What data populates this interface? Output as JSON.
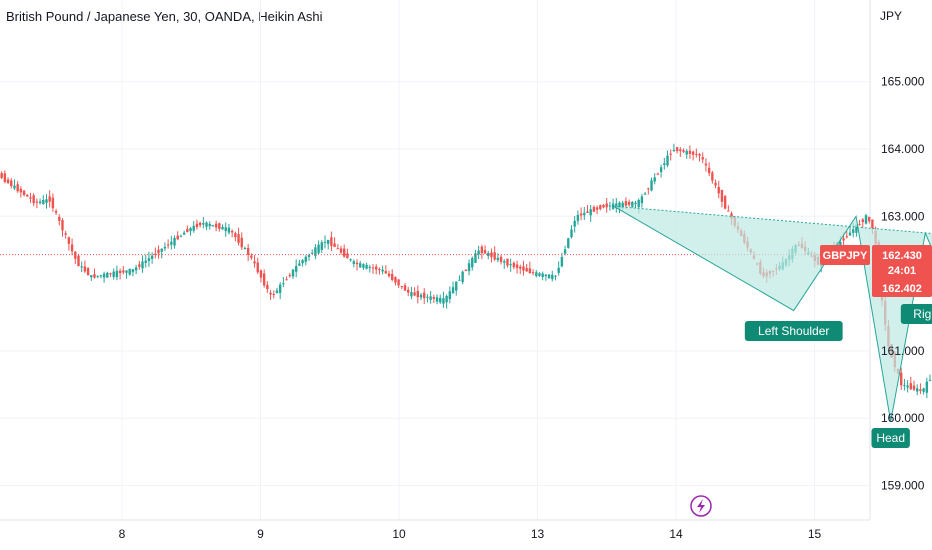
{
  "header": {
    "title": "British Pound / Japanese Yen, 30, OANDA, Heikin Ashi",
    "unit": "JPY"
  },
  "colors": {
    "up": "#26a69a",
    "down": "#ef5350",
    "pattern_fill": "#bfe9e2",
    "pattern_line": "#26a69a",
    "label_bg": "#0e8a75",
    "price_line": "#ef5350",
    "grid": "#f0f3fa",
    "icon": "#9c27b0"
  },
  "price_tag": {
    "symbol": "GBPJPY",
    "price": "162.430",
    "countdown": "24:01",
    "bid": "162.402"
  },
  "pattern_labels": {
    "left": "Left Shoulder",
    "head": "Head",
    "right": "Right Shoulder"
  },
  "icon": "lightning-icon",
  "chart_data": {
    "type": "candlestick",
    "style": "Heikin Ashi",
    "symbol": "GBPJPY",
    "interval": "30",
    "y_ticks": [
      "165.000",
      "164.000",
      "163.000",
      "161.000",
      "160.000",
      "159.000"
    ],
    "x_ticks": [
      "8",
      "9",
      "10",
      "13",
      "14",
      "15"
    ],
    "ylim": [
      158.9,
      165.3
    ],
    "current_price": 162.43,
    "grid": true,
    "pattern": {
      "name": "Inverse Head and Shoulders",
      "points": [
        {
          "time": 11.55,
          "price": 163.15
        },
        {
          "time": 12.85,
          "price": 161.6
        },
        {
          "time": 13.3,
          "price": 163.0
        },
        {
          "time": 13.55,
          "price": 159.95
        },
        {
          "time": 13.8,
          "price": 162.75
        },
        {
          "time": 14.0,
          "price": 161.8
        },
        {
          "time": 14.2,
          "price": 164.0
        }
      ],
      "neckline": [
        {
          "time": 11.55,
          "price": 163.15
        },
        {
          "time": 14.1,
          "price": 162.7
        }
      ]
    },
    "path": [
      [
        6.9,
        163.8
      ],
      [
        7.0,
        163.85
      ],
      [
        7.2,
        163.5
      ],
      [
        7.4,
        163.2
      ],
      [
        7.5,
        163.25
      ],
      [
        7.7,
        162.3
      ],
      [
        7.8,
        162.1
      ],
      [
        8.1,
        162.2
      ],
      [
        8.3,
        162.5
      ],
      [
        8.5,
        162.8
      ],
      [
        8.6,
        162.9
      ],
      [
        8.8,
        162.8
      ],
      [
        8.95,
        162.4
      ],
      [
        9.1,
        161.8
      ],
      [
        9.3,
        162.3
      ],
      [
        9.5,
        162.65
      ],
      [
        9.7,
        162.3
      ],
      [
        9.9,
        162.2
      ],
      [
        10.1,
        161.85
      ],
      [
        10.35,
        161.75
      ],
      [
        10.6,
        162.5
      ],
      [
        10.8,
        162.3
      ],
      [
        11.0,
        162.15
      ],
      [
        11.15,
        162.1
      ],
      [
        11.3,
        163.0
      ],
      [
        11.5,
        163.15
      ],
      [
        11.75,
        163.2
      ],
      [
        12.0,
        164.0
      ],
      [
        12.2,
        163.9
      ],
      [
        12.4,
        163.05
      ],
      [
        12.55,
        162.5
      ],
      [
        12.65,
        162.1
      ],
      [
        12.8,
        162.3
      ],
      [
        12.9,
        162.6
      ],
      [
        13.05,
        162.3
      ],
      [
        13.2,
        162.6
      ],
      [
        13.4,
        163.0
      ],
      [
        13.45,
        162.8
      ],
      [
        13.55,
        161.1
      ],
      [
        13.65,
        160.5
      ],
      [
        13.8,
        160.4
      ],
      [
        13.95,
        160.9
      ],
      [
        14.1,
        161.7
      ],
      [
        14.2,
        162.6
      ],
      [
        14.3,
        162.5
      ],
      [
        14.4,
        162.2
      ],
      [
        14.5,
        162.0
      ],
      [
        14.55,
        162.5
      ],
      [
        14.62,
        162.43
      ]
    ]
  }
}
